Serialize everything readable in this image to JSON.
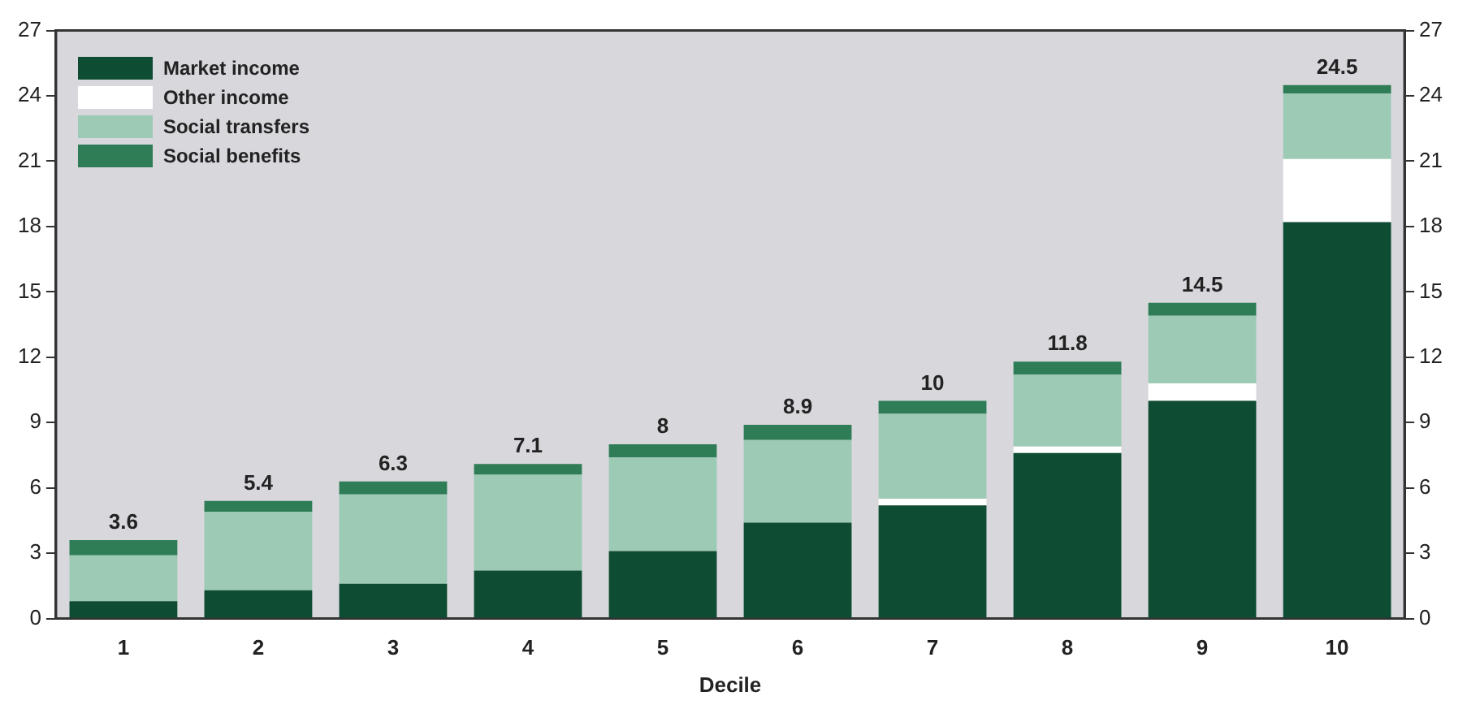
{
  "chart_data": {
    "type": "bar",
    "xlabel": "Decile",
    "categories": [
      "1",
      "2",
      "3",
      "4",
      "5",
      "6",
      "7",
      "8",
      "9",
      "10"
    ],
    "stacked": true,
    "legend": "top left",
    "grid": false,
    "series": [
      {
        "name": "Market income",
        "color": "#0e4d33",
        "values": [
          0.8,
          1.3,
          1.6,
          2.2,
          3.1,
          4.4,
          5.2,
          7.6,
          10.0,
          18.2
        ]
      },
      {
        "name": "Other income",
        "color": "#ffffff",
        "values": [
          null,
          null,
          null,
          null,
          null,
          null,
          0.3,
          0.3,
          0.8,
          2.9
        ]
      },
      {
        "name": "Social transfers",
        "color": "#9ccab4",
        "values": [
          2.1,
          3.6,
          4.1,
          4.4,
          4.3,
          3.8,
          3.9,
          3.3,
          3.1,
          3.0
        ]
      },
      {
        "name": "Social benefits",
        "color": "#2e7d57",
        "values": [
          0.7,
          0.5,
          0.6,
          0.5,
          0.6,
          0.7,
          0.6,
          0.6,
          0.6,
          0.4
        ]
      }
    ],
    "totals": [
      "3.6",
      "5.4",
      "6.3",
      "7.1",
      "8",
      "8.9",
      "10",
      "11.8",
      "14.5",
      "24.5"
    ],
    "ylim": [
      0,
      27
    ],
    "yticks": [
      0,
      3,
      6,
      9,
      12,
      15,
      18,
      21,
      24,
      27
    ],
    "y2lim": [
      0,
      27
    ],
    "y2ticks": [
      0,
      3,
      6,
      9,
      12,
      15,
      18,
      21,
      24,
      27
    ]
  }
}
